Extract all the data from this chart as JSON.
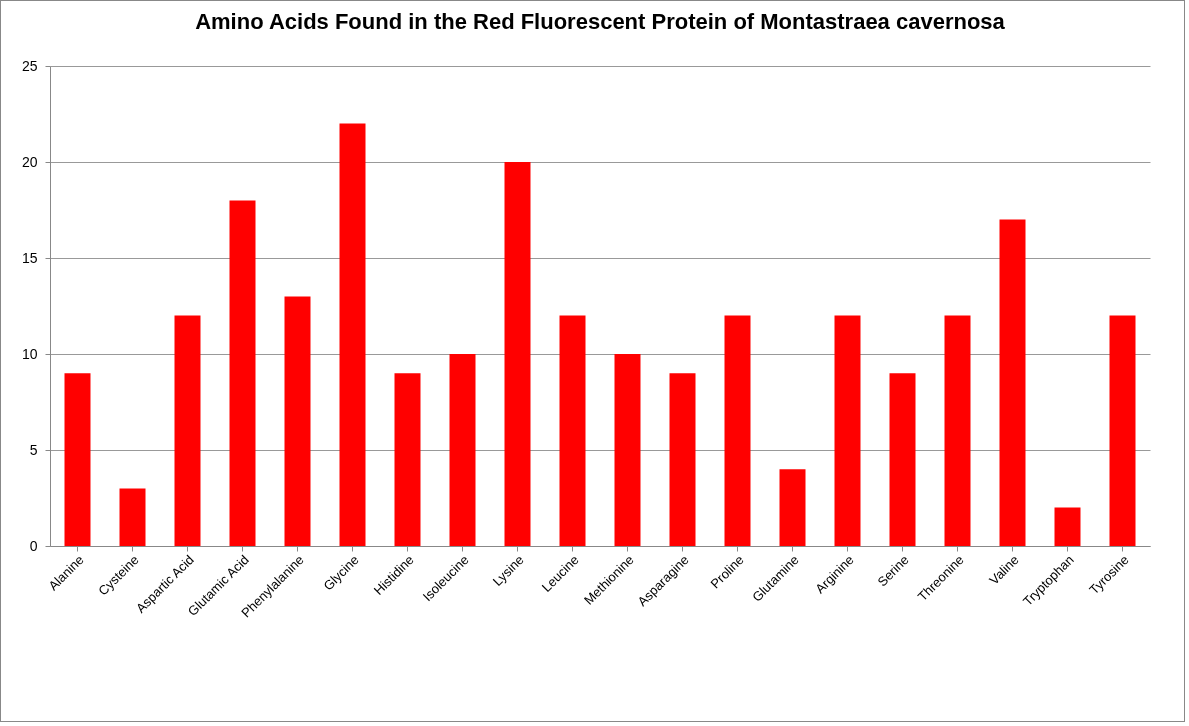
{
  "chart_data": {
    "type": "bar",
    "title": "Amino Acids Found in the Red Fluorescent Protein of Montastraea cavernosa",
    "categories": [
      "Alanine",
      "Cysteine",
      "Aspartic Acid",
      "Glutamic Acid",
      "Phenylalanine",
      "Glycine",
      "Histidine",
      "Isoleucine",
      "Lysine",
      "Leucine",
      "Methionine",
      "Asparagine",
      "Proline",
      "Glutamine",
      "Arginine",
      "Serine",
      "Threonine",
      "Valine",
      "Tryptophan",
      "Tyrosine"
    ],
    "values": [
      9,
      3,
      12,
      18,
      13,
      22,
      9,
      10,
      20,
      12,
      10,
      9,
      12,
      4,
      12,
      9,
      12,
      17,
      2,
      12
    ],
    "color": "#ff0000",
    "ylim": [
      0,
      25
    ],
    "yticks": [
      0,
      5,
      10,
      15,
      20,
      25
    ],
    "grid": "y"
  }
}
